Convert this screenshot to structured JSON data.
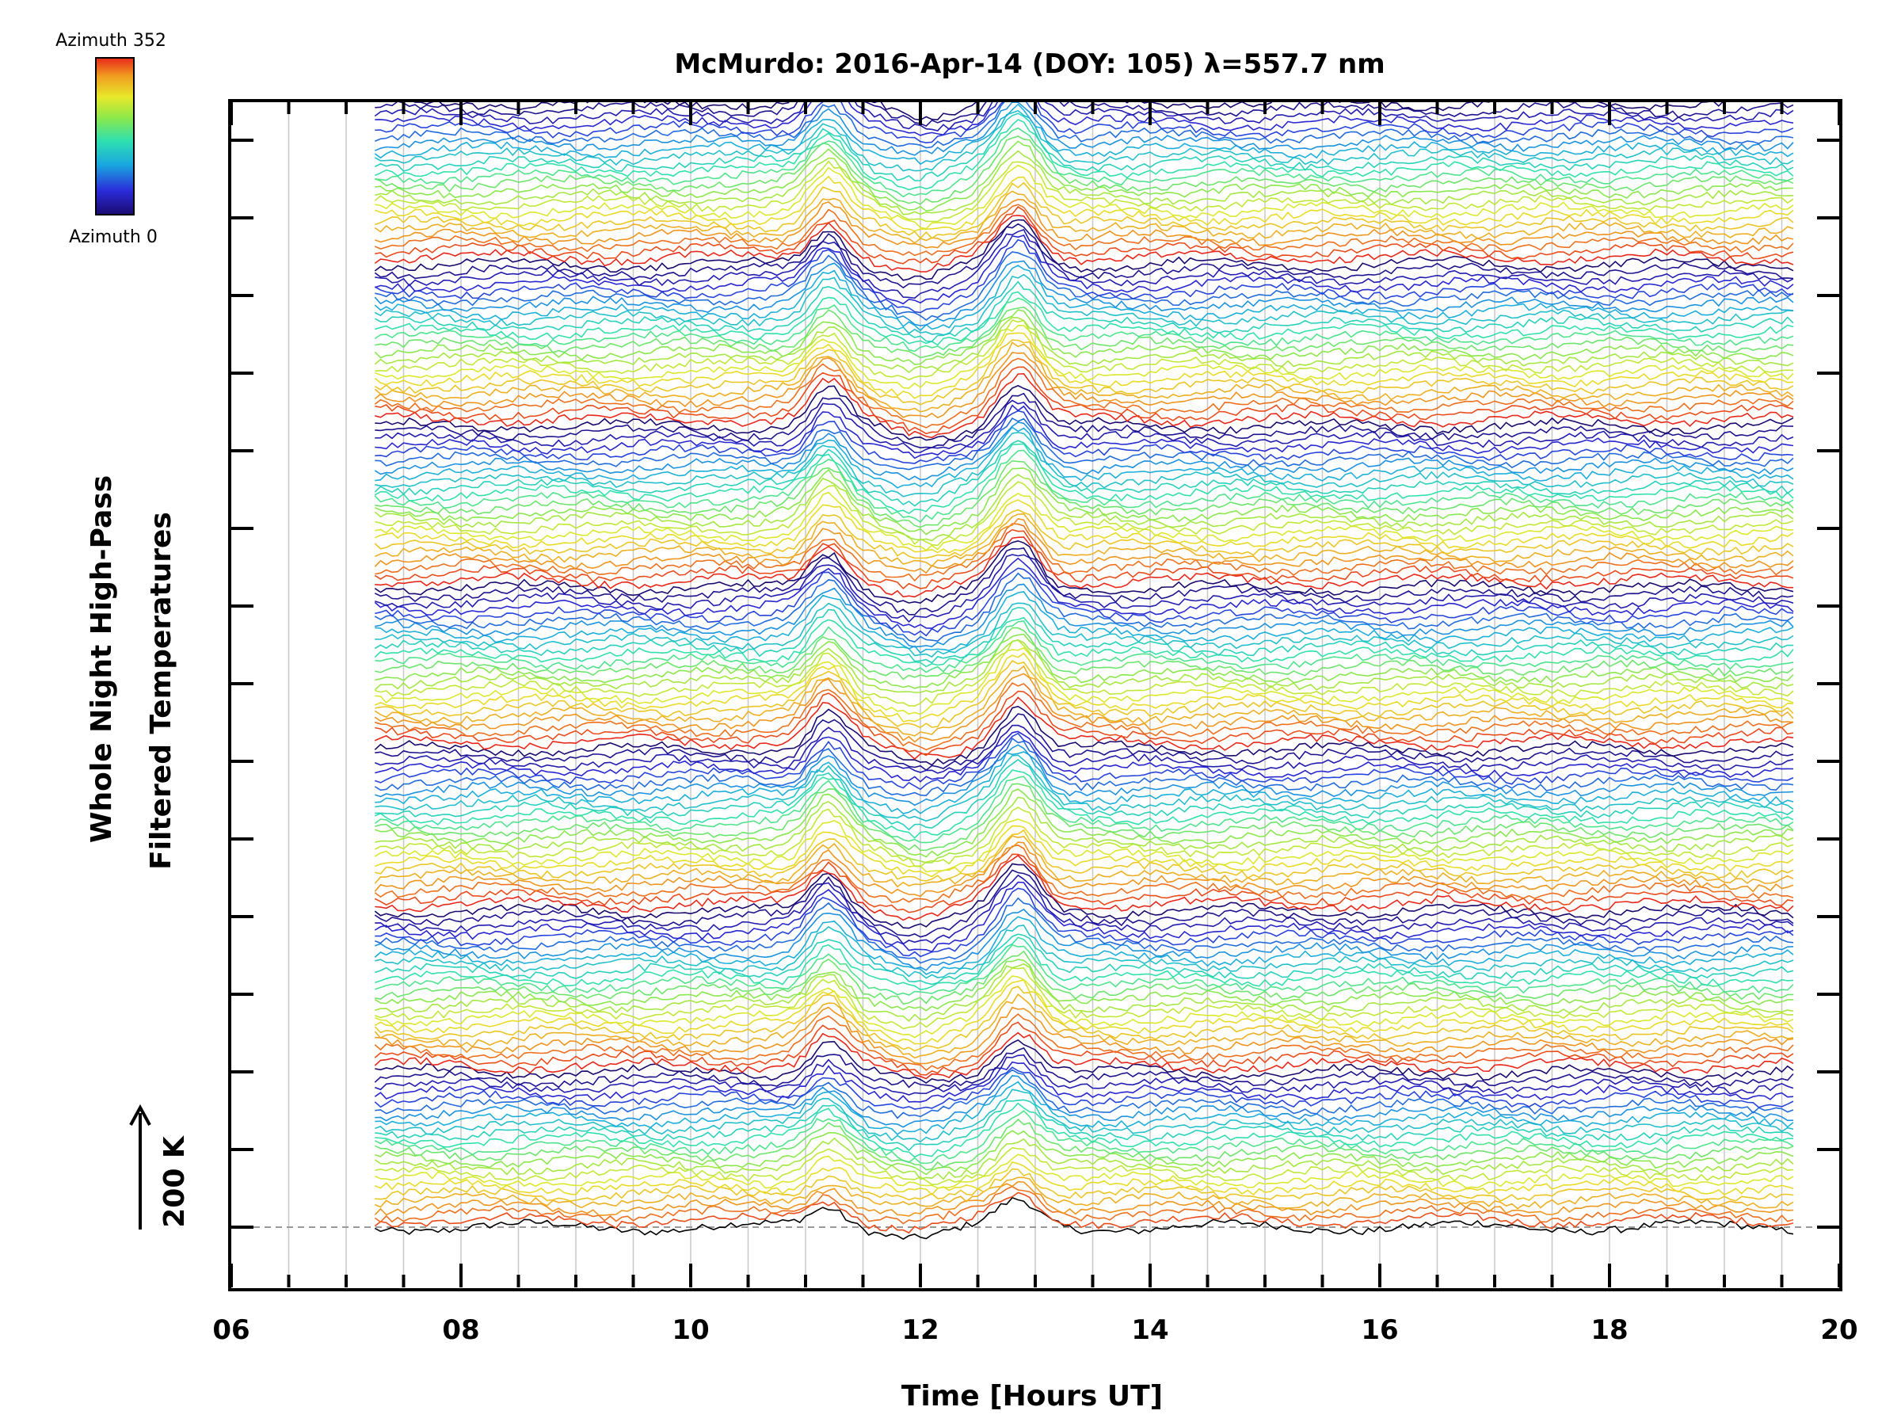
{
  "chart_data": {
    "type": "line",
    "title": "McMurdo: 2016-Apr-14 (DOY: 105) λ=557.7 nm",
    "xlabel": "Time [Hours UT]",
    "ylabel_line1": "Whole Night High-Pass",
    "ylabel_line2": "Filtered Temperatures",
    "xlim": [
      6,
      20
    ],
    "x_ticks": [
      "06",
      "08",
      "10",
      "12",
      "14",
      "16",
      "18",
      "20"
    ],
    "data_x_range": [
      7.25,
      19.6
    ],
    "scale_label": "200 K",
    "colorbar": {
      "top_label": "Azimuth 352",
      "bottom_label": "Azimuth 0",
      "colors": [
        "#1a0a6e",
        "#2a2ad8",
        "#1aa8e0",
        "#2ee0b0",
        "#8ee84a",
        "#e8e82a",
        "#f0a020",
        "#e8281a"
      ]
    },
    "grid": true,
    "num_traces": 168,
    "peak_times_hours_ut": [
      11.2,
      12.85
    ],
    "colors": {
      "background": "#ffffff",
      "axes": "#000000",
      "grid": "#c8c8c8"
    }
  }
}
